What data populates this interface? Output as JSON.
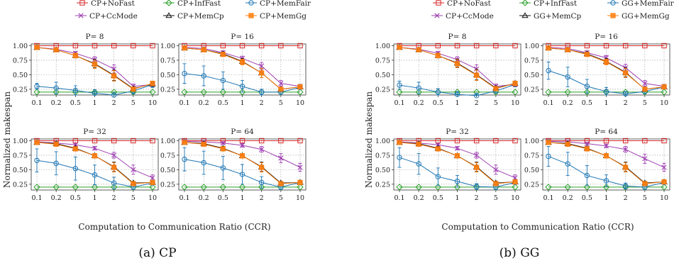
{
  "figures": [
    {
      "caption": "(a) CP",
      "legend": [
        {
          "label": "CP+NoFast",
          "color": "#d62728",
          "marker": "square"
        },
        {
          "label": "CP+InfFast",
          "color": "#2ca02c",
          "marker": "diamond"
        },
        {
          "label": "CP+MemFair",
          "color": "#1f77b4",
          "marker": "circle"
        },
        {
          "label": "CP+CcMode",
          "color": "#9e3fb1",
          "marker": "x"
        },
        {
          "label": "CP+MemCp",
          "color": "#111111",
          "marker": "triangle"
        },
        {
          "label": "CP+MemGg",
          "color": "#ff7f0e",
          "marker": "square-filled"
        }
      ]
    },
    {
      "caption": "(b) GG",
      "legend": [
        {
          "label": "CP+NoFast",
          "color": "#d62728",
          "marker": "square"
        },
        {
          "label": "CP+InfFast",
          "color": "#2ca02c",
          "marker": "diamond"
        },
        {
          "label": "GG+MemFair",
          "color": "#1f77b4",
          "marker": "circle"
        },
        {
          "label": "CP+CcMode",
          "color": "#9e3fb1",
          "marker": "x"
        },
        {
          "label": "GG+MemCp",
          "color": "#111111",
          "marker": "triangle"
        },
        {
          "label": "GG+MemGg",
          "color": "#ff7f0e",
          "marker": "square-filled"
        }
      ]
    }
  ],
  "axes": {
    "xlabel": "Computation to Communication Ratio (CCR)",
    "ylabel": "Normalized makespan",
    "xticks": [
      "0.1",
      "0.2",
      "0.5",
      "1",
      "2",
      "5",
      "10"
    ],
    "yticks": [
      "0.25",
      "0.50",
      "0.75",
      "1.00"
    ]
  },
  "chart_data": [
    {
      "type": "line",
      "figure": "(a) CP",
      "title": "P= 8",
      "ylim": [
        0.15,
        1.03
      ],
      "x": [
        0.1,
        0.2,
        0.5,
        1,
        2,
        5,
        10
      ],
      "series": [
        {
          "name": "CP+NoFast",
          "values": [
            1.0,
            1.0,
            1.0,
            1.0,
            1.0,
            1.0,
            1.0
          ]
        },
        {
          "name": "CP+InfFast",
          "values": [
            0.2,
            0.2,
            0.2,
            0.2,
            0.2,
            0.2,
            0.2
          ]
        },
        {
          "name": "CP+MemFair",
          "values": [
            0.3,
            0.27,
            0.23,
            0.18,
            0.15,
            0.22,
            0.33
          ],
          "err": [
            0.05,
            0.1,
            0.08,
            0.06,
            0.03,
            0.05,
            0.05
          ]
        },
        {
          "name": "CP+CcMode",
          "values": [
            0.97,
            0.94,
            0.87,
            0.76,
            0.6,
            0.3,
            0.33
          ],
          "err": [
            0.01,
            0.02,
            0.03,
            0.05,
            0.07,
            0.04,
            0.03
          ]
        },
        {
          "name": "CP+MemCp",
          "values": [
            0.97,
            0.93,
            0.83,
            0.69,
            0.49,
            0.26,
            0.34
          ],
          "err": [
            0.01,
            0.02,
            0.04,
            0.07,
            0.09,
            0.03,
            0.04
          ]
        },
        {
          "name": "CP+MemGg",
          "values": [
            0.97,
            0.93,
            0.83,
            0.68,
            0.48,
            0.25,
            0.35
          ],
          "err": [
            0.01,
            0.02,
            0.04,
            0.07,
            0.09,
            0.03,
            0.04
          ]
        }
      ]
    },
    {
      "type": "line",
      "figure": "(a) CP",
      "title": "P= 16",
      "ylim": [
        0.15,
        1.03
      ],
      "x": [
        0.1,
        0.2,
        0.5,
        1,
        2,
        5,
        10
      ],
      "series": [
        {
          "name": "CP+NoFast",
          "values": [
            1.0,
            1.0,
            1.0,
            1.0,
            1.0,
            1.0,
            1.0
          ]
        },
        {
          "name": "CP+InfFast",
          "values": [
            0.2,
            0.2,
            0.2,
            0.2,
            0.2,
            0.2,
            0.2
          ]
        },
        {
          "name": "CP+MemFair",
          "values": [
            0.52,
            0.48,
            0.4,
            0.3,
            0.2,
            0.2,
            0.28
          ],
          "err": [
            0.17,
            0.17,
            0.15,
            0.1,
            0.05,
            0.03,
            0.03
          ]
        },
        {
          "name": "CP+CcMode",
          "values": [
            0.97,
            0.95,
            0.88,
            0.78,
            0.65,
            0.35,
            0.3
          ],
          "err": [
            0.01,
            0.02,
            0.03,
            0.04,
            0.06,
            0.05,
            0.03
          ]
        },
        {
          "name": "CP+MemCp",
          "values": [
            0.96,
            0.93,
            0.86,
            0.73,
            0.53,
            0.25,
            0.29
          ],
          "err": [
            0.01,
            0.02,
            0.03,
            0.05,
            0.08,
            0.03,
            0.03
          ]
        },
        {
          "name": "CP+MemGg",
          "values": [
            0.96,
            0.93,
            0.85,
            0.72,
            0.53,
            0.25,
            0.29
          ],
          "err": [
            0.01,
            0.02,
            0.03,
            0.05,
            0.08,
            0.03,
            0.03
          ]
        }
      ]
    },
    {
      "type": "line",
      "figure": "(a) CP",
      "title": "P= 32",
      "ylim": [
        0.15,
        1.03
      ],
      "x": [
        0.1,
        0.2,
        0.5,
        1,
        2,
        5,
        10
      ],
      "series": [
        {
          "name": "CP+NoFast",
          "values": [
            1.0,
            1.0,
            1.0,
            1.0,
            1.0,
            1.0,
            1.0
          ]
        },
        {
          "name": "CP+InfFast",
          "values": [
            0.2,
            0.2,
            0.2,
            0.2,
            0.2,
            0.2,
            0.2
          ]
        },
        {
          "name": "CP+MemFair",
          "values": [
            0.66,
            0.61,
            0.52,
            0.41,
            0.27,
            0.2,
            0.27
          ],
          "err": [
            0.2,
            0.2,
            0.2,
            0.17,
            0.1,
            0.04,
            0.03
          ]
        },
        {
          "name": "CP+CcMode",
          "values": [
            0.98,
            0.96,
            0.93,
            0.87,
            0.75,
            0.5,
            0.36
          ],
          "err": [
            0.01,
            0.01,
            0.02,
            0.03,
            0.05,
            0.08,
            0.05
          ]
        },
        {
          "name": "CP+MemCp",
          "values": [
            0.97,
            0.95,
            0.87,
            0.74,
            0.55,
            0.27,
            0.28
          ],
          "err": [
            0.01,
            0.02,
            0.03,
            0.04,
            0.08,
            0.03,
            0.03
          ]
        },
        {
          "name": "CP+MemGg",
          "values": [
            0.97,
            0.94,
            0.86,
            0.74,
            0.54,
            0.26,
            0.28
          ],
          "err": [
            0.01,
            0.02,
            0.03,
            0.04,
            0.08,
            0.03,
            0.03
          ]
        }
      ]
    },
    {
      "type": "line",
      "figure": "(a) CP",
      "title": "P= 64",
      "ylim": [
        0.15,
        1.03
      ],
      "x": [
        0.1,
        0.2,
        0.5,
        1,
        2,
        5,
        10
      ],
      "series": [
        {
          "name": "CP+NoFast",
          "values": [
            1.0,
            1.0,
            1.0,
            1.0,
            1.0,
            1.0,
            1.0
          ]
        },
        {
          "name": "CP+InfFast",
          "values": [
            0.2,
            0.2,
            0.2,
            0.2,
            0.2,
            0.2,
            0.2
          ]
        },
        {
          "name": "CP+MemFair",
          "values": [
            0.68,
            0.62,
            0.53,
            0.42,
            0.28,
            0.2,
            0.28
          ],
          "err": [
            0.2,
            0.2,
            0.2,
            0.17,
            0.1,
            0.04,
            0.03
          ]
        },
        {
          "name": "CP+CcMode",
          "values": [
            0.99,
            0.98,
            0.96,
            0.92,
            0.85,
            0.7,
            0.54
          ],
          "err": [
            0.01,
            0.01,
            0.02,
            0.03,
            0.05,
            0.08,
            0.07
          ]
        },
        {
          "name": "CP+MemCp",
          "values": [
            0.97,
            0.95,
            0.87,
            0.74,
            0.55,
            0.27,
            0.28
          ],
          "err": [
            0.01,
            0.02,
            0.03,
            0.04,
            0.08,
            0.03,
            0.03
          ]
        },
        {
          "name": "CP+MemGg",
          "values": [
            0.97,
            0.94,
            0.86,
            0.74,
            0.54,
            0.26,
            0.28
          ],
          "err": [
            0.01,
            0.02,
            0.03,
            0.04,
            0.08,
            0.03,
            0.03
          ]
        }
      ]
    },
    {
      "type": "line",
      "figure": "(b) GG",
      "title": "P= 8",
      "ylim": [
        0.15,
        1.03
      ],
      "x": [
        0.1,
        0.2,
        0.5,
        1,
        2,
        5,
        10
      ],
      "series": [
        {
          "name": "CP+NoFast",
          "values": [
            1.0,
            1.0,
            1.0,
            1.0,
            1.0,
            1.0,
            1.0
          ]
        },
        {
          "name": "CP+InfFast",
          "values": [
            0.2,
            0.2,
            0.2,
            0.2,
            0.2,
            0.2,
            0.2
          ]
        },
        {
          "name": "GG+MemFair",
          "values": [
            0.32,
            0.27,
            0.2,
            0.16,
            0.14,
            0.22,
            0.33
          ],
          "err": [
            0.07,
            0.1,
            0.06,
            0.05,
            0.03,
            0.04,
            0.04
          ]
        },
        {
          "name": "CP+CcMode",
          "values": [
            0.97,
            0.94,
            0.87,
            0.76,
            0.6,
            0.3,
            0.33
          ],
          "err": [
            0.01,
            0.02,
            0.03,
            0.05,
            0.07,
            0.04,
            0.03
          ]
        },
        {
          "name": "GG+MemCp",
          "values": [
            0.97,
            0.93,
            0.83,
            0.7,
            0.5,
            0.27,
            0.35
          ],
          "err": [
            0.01,
            0.02,
            0.04,
            0.07,
            0.09,
            0.03,
            0.04
          ]
        },
        {
          "name": "GG+MemGg",
          "values": [
            0.97,
            0.93,
            0.83,
            0.69,
            0.49,
            0.26,
            0.35
          ],
          "err": [
            0.01,
            0.02,
            0.04,
            0.07,
            0.09,
            0.03,
            0.04
          ]
        }
      ]
    },
    {
      "type": "line",
      "figure": "(b) GG",
      "title": "P= 16",
      "ylim": [
        0.15,
        1.03
      ],
      "x": [
        0.1,
        0.2,
        0.5,
        1,
        2,
        5,
        10
      ],
      "series": [
        {
          "name": "CP+NoFast",
          "values": [
            1.0,
            1.0,
            1.0,
            1.0,
            1.0,
            1.0,
            1.0
          ]
        },
        {
          "name": "CP+InfFast",
          "values": [
            0.2,
            0.2,
            0.2,
            0.2,
            0.2,
            0.2,
            0.2
          ]
        },
        {
          "name": "GG+MemFair",
          "values": [
            0.57,
            0.46,
            0.3,
            0.21,
            0.17,
            0.21,
            0.29
          ],
          "err": [
            0.15,
            0.17,
            0.12,
            0.07,
            0.04,
            0.03,
            0.03
          ]
        },
        {
          "name": "CP+CcMode",
          "values": [
            0.97,
            0.95,
            0.88,
            0.79,
            0.62,
            0.35,
            0.3
          ],
          "err": [
            0.01,
            0.02,
            0.03,
            0.04,
            0.06,
            0.05,
            0.03
          ]
        },
        {
          "name": "GG+MemCp",
          "values": [
            0.96,
            0.93,
            0.86,
            0.73,
            0.54,
            0.25,
            0.29
          ],
          "err": [
            0.01,
            0.02,
            0.03,
            0.05,
            0.08,
            0.03,
            0.03
          ]
        },
        {
          "name": "GG+MemGg",
          "values": [
            0.96,
            0.93,
            0.85,
            0.72,
            0.53,
            0.25,
            0.29
          ],
          "err": [
            0.01,
            0.02,
            0.03,
            0.05,
            0.08,
            0.03,
            0.03
          ]
        }
      ]
    },
    {
      "type": "line",
      "figure": "(b) GG",
      "title": "P= 32",
      "ylim": [
        0.15,
        1.03
      ],
      "x": [
        0.1,
        0.2,
        0.5,
        1,
        2,
        5,
        10
      ],
      "series": [
        {
          "name": "CP+NoFast",
          "values": [
            1.0,
            1.0,
            1.0,
            1.0,
            1.0,
            1.0,
            1.0
          ]
        },
        {
          "name": "CP+InfFast",
          "values": [
            0.2,
            0.2,
            0.2,
            0.2,
            0.2,
            0.2,
            0.2
          ]
        },
        {
          "name": "GG+MemFair",
          "values": [
            0.71,
            0.6,
            0.38,
            0.3,
            0.21,
            0.2,
            0.28
          ],
          "err": [
            0.17,
            0.18,
            0.15,
            0.1,
            0.05,
            0.04,
            0.03
          ]
        },
        {
          "name": "CP+CcMode",
          "values": [
            0.98,
            0.96,
            0.93,
            0.87,
            0.75,
            0.5,
            0.36
          ],
          "err": [
            0.01,
            0.01,
            0.02,
            0.03,
            0.05,
            0.08,
            0.05
          ]
        },
        {
          "name": "GG+MemCp",
          "values": [
            0.97,
            0.95,
            0.87,
            0.74,
            0.55,
            0.27,
            0.29
          ],
          "err": [
            0.01,
            0.02,
            0.03,
            0.04,
            0.08,
            0.03,
            0.03
          ]
        },
        {
          "name": "GG+MemGg",
          "values": [
            0.97,
            0.94,
            0.86,
            0.74,
            0.54,
            0.26,
            0.29
          ],
          "err": [
            0.01,
            0.02,
            0.03,
            0.04,
            0.08,
            0.03,
            0.03
          ]
        }
      ]
    },
    {
      "type": "line",
      "figure": "(b) GG",
      "title": "P= 64",
      "ylim": [
        0.15,
        1.03
      ],
      "x": [
        0.1,
        0.2,
        0.5,
        1,
        2,
        5,
        10
      ],
      "series": [
        {
          "name": "CP+NoFast",
          "values": [
            1.0,
            1.0,
            1.0,
            1.0,
            1.0,
            1.0,
            1.0
          ]
        },
        {
          "name": "CP+InfFast",
          "values": [
            0.2,
            0.2,
            0.2,
            0.2,
            0.2,
            0.2,
            0.2
          ]
        },
        {
          "name": "GG+MemFair",
          "values": [
            0.73,
            0.6,
            0.4,
            0.31,
            0.22,
            0.2,
            0.28
          ],
          "err": [
            0.17,
            0.2,
            0.17,
            0.1,
            0.05,
            0.04,
            0.03
          ]
        },
        {
          "name": "CP+CcMode",
          "values": [
            0.99,
            0.98,
            0.95,
            0.91,
            0.85,
            0.69,
            0.54
          ],
          "err": [
            0.01,
            0.01,
            0.02,
            0.03,
            0.05,
            0.08,
            0.07
          ]
        },
        {
          "name": "GG+MemCp",
          "values": [
            0.97,
            0.95,
            0.87,
            0.74,
            0.55,
            0.27,
            0.29
          ],
          "err": [
            0.01,
            0.02,
            0.03,
            0.04,
            0.08,
            0.03,
            0.03
          ]
        },
        {
          "name": "GG+MemGg",
          "values": [
            0.97,
            0.94,
            0.86,
            0.74,
            0.54,
            0.26,
            0.29
          ],
          "err": [
            0.01,
            0.02,
            0.03,
            0.04,
            0.08,
            0.03,
            0.03
          ]
        }
      ]
    }
  ]
}
